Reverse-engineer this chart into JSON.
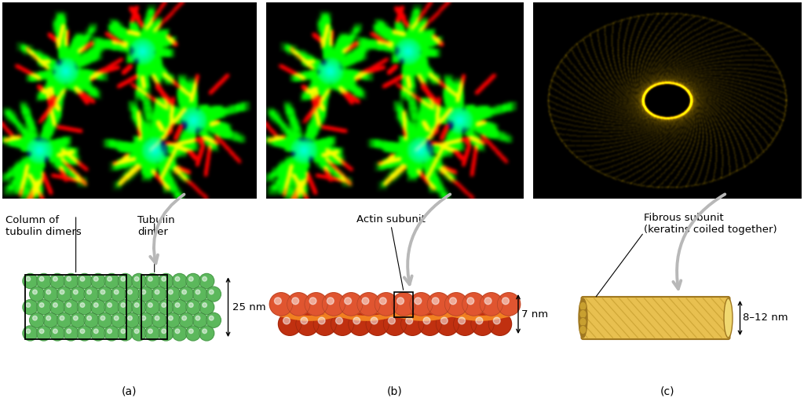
{
  "bg_color": "#ffffff",
  "panel_a": {
    "label": "(a)",
    "text1": "Column of\ntubulin dimers",
    "text2": "Tubulin\ndimer",
    "size_label": "25 nm",
    "sphere_color": "#5cb85c",
    "sphere_dark": "#2e7d2e",
    "sphere_light": "#aae8aa"
  },
  "panel_b": {
    "label": "(b)",
    "text1": "Actin subunit",
    "size_label": "7 nm",
    "bead_color_top": "#e05530",
    "bead_color_bot": "#c03010",
    "helix_color": "#f08020"
  },
  "panel_c": {
    "label": "(c)",
    "text1": "Fibrous subunit\n(keratins coiled together)",
    "size_label": "8–12 nm",
    "fiber_color": "#e8c050",
    "fiber_mid": "#c8a030",
    "fiber_dark": "#a07820"
  },
  "arrow_color": "#b8b8b8",
  "text_color": "#1a1a1a",
  "font_size": 9
}
